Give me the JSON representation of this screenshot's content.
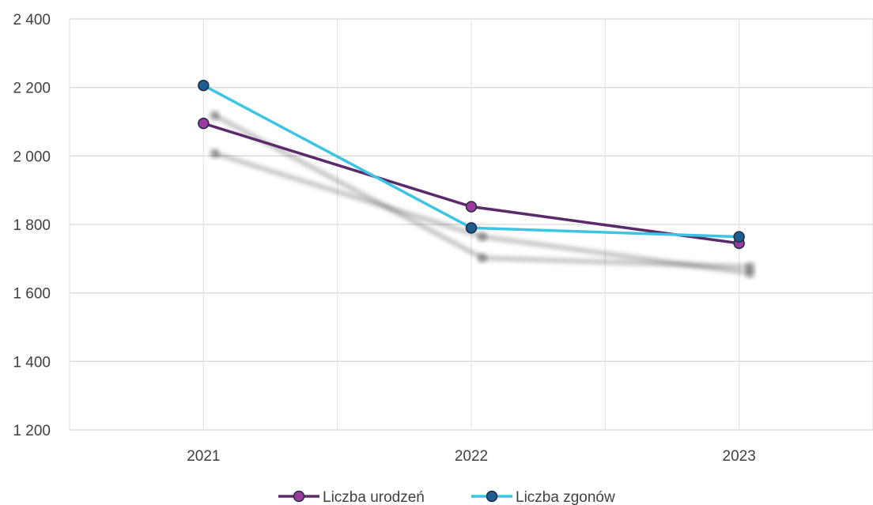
{
  "chart_data": {
    "type": "line",
    "categories": [
      "2021",
      "2022",
      "2023"
    ],
    "ylim": [
      1200,
      2400
    ],
    "yticks": [
      1200,
      1400,
      1600,
      1800,
      2000,
      2200,
      2400
    ],
    "ytick_labels": [
      "1 200",
      "1 400",
      "1 600",
      "1 800",
      "2 000",
      "2 200",
      "2 400"
    ],
    "grid": true,
    "legend_position": "bottom",
    "series": [
      {
        "name": "Liczba urodzeń",
        "values": [
          2095,
          1852,
          1745
        ],
        "color": "#5b2a6b",
        "marker_color": "#9b3a9e"
      },
      {
        "name": "Liczba zgonów",
        "values": [
          2206,
          1790,
          1764
        ],
        "color": "#3cc4e2",
        "marker_color": "#1d5d8f"
      }
    ]
  }
}
